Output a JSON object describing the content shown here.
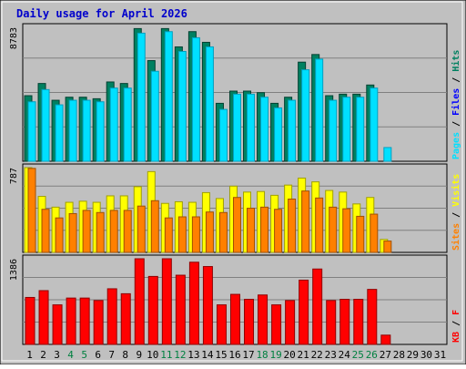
{
  "colors": {
    "background": "#c0c0c0",
    "plot_bg": "#c0c0c0",
    "title": "#0000cc",
    "hits": "#00c0c0",
    "files": "#0000ff",
    "pages": "#00e0ff",
    "pages_side": "#00a0c0",
    "hits_dark": "#008060",
    "visits": "#ffff00",
    "sites": "#ff8000",
    "kb": "#ff0000",
    "weekend_day": "#008040",
    "grid": "#808080"
  },
  "chart_data": {
    "title": "Daily usage for April 2026",
    "days": [
      "1",
      "2",
      "3",
      "4",
      "5",
      "6",
      "7",
      "8",
      "9",
      "10",
      "11",
      "12",
      "13",
      "14",
      "15",
      "16",
      "17",
      "18",
      "19",
      "20",
      "21",
      "22",
      "23",
      "24",
      "25",
      "26",
      "27",
      "28",
      "29",
      "30",
      "31"
    ],
    "weekend_days": [
      "4",
      "5",
      "11",
      "12",
      "18",
      "19",
      "25",
      "26"
    ],
    "panels": [
      {
        "id": "hits-panel",
        "ymax_label": "8783",
        "ymax": 8783,
        "legend": [
          "Pages",
          "Files",
          "Hits"
        ],
        "series": [
          {
            "name": "Hits",
            "values": [
              4300,
              5100,
              4000,
              4200,
              4200,
              4100,
              5200,
              5100,
              8700,
              6600,
              8700,
              7500,
              8500,
              7800,
              3800,
              4600,
              4600,
              4500,
              3800,
              4200,
              6500,
              7000,
              4300,
              4400,
              4400,
              5000,
              0,
              0,
              0,
              0,
              0
            ]
          },
          {
            "name": "Pages",
            "values": [
              3900,
              4700,
              3700,
              4000,
              4000,
              3900,
              4800,
              4800,
              8400,
              5900,
              8500,
              7200,
              8100,
              7500,
              3400,
              4400,
              4400,
              4200,
              3500,
              4000,
              6000,
              6700,
              4000,
              4200,
              4200,
              4800,
              900,
              0,
              0,
              0,
              0
            ]
          }
        ]
      },
      {
        "id": "visits-panel",
        "ymax_label": "787",
        "ymax": 787,
        "legend": [
          "Sites",
          "Visits"
        ],
        "series": [
          {
            "name": "Visits",
            "values": [
              787,
              520,
              420,
              465,
              475,
              465,
              525,
              525,
              610,
              750,
              455,
              470,
              465,
              555,
              500,
              615,
              560,
              565,
              530,
              625,
              690,
              655,
              575,
              560,
              450,
              510,
              120,
              0,
              0,
              0,
              0
            ]
          },
          {
            "name": "Sites",
            "values": [
              780,
              400,
              320,
              360,
              390,
              370,
              390,
              390,
              430,
              480,
              320,
              330,
              330,
              375,
              370,
              510,
              410,
              420,
              400,
              495,
              570,
              505,
              420,
              405,
              335,
              355,
              105,
              0,
              0,
              0,
              0
            ]
          }
        ]
      },
      {
        "id": "kb-panel",
        "ymax_label": "1386",
        "ymax": 1386,
        "legend": [
          "KB",
          "F"
        ],
        "series": [
          {
            "name": "KB",
            "values": [
              760,
              870,
              640,
              750,
              750,
              710,
              900,
              820,
              1386,
              1100,
              1386,
              1120,
              1330,
              1260,
              640,
              810,
              730,
              800,
              640,
              710,
              1040,
              1220,
              710,
              730,
              730,
              890,
              150,
              0,
              0,
              0,
              0
            ]
          }
        ]
      }
    ]
  }
}
